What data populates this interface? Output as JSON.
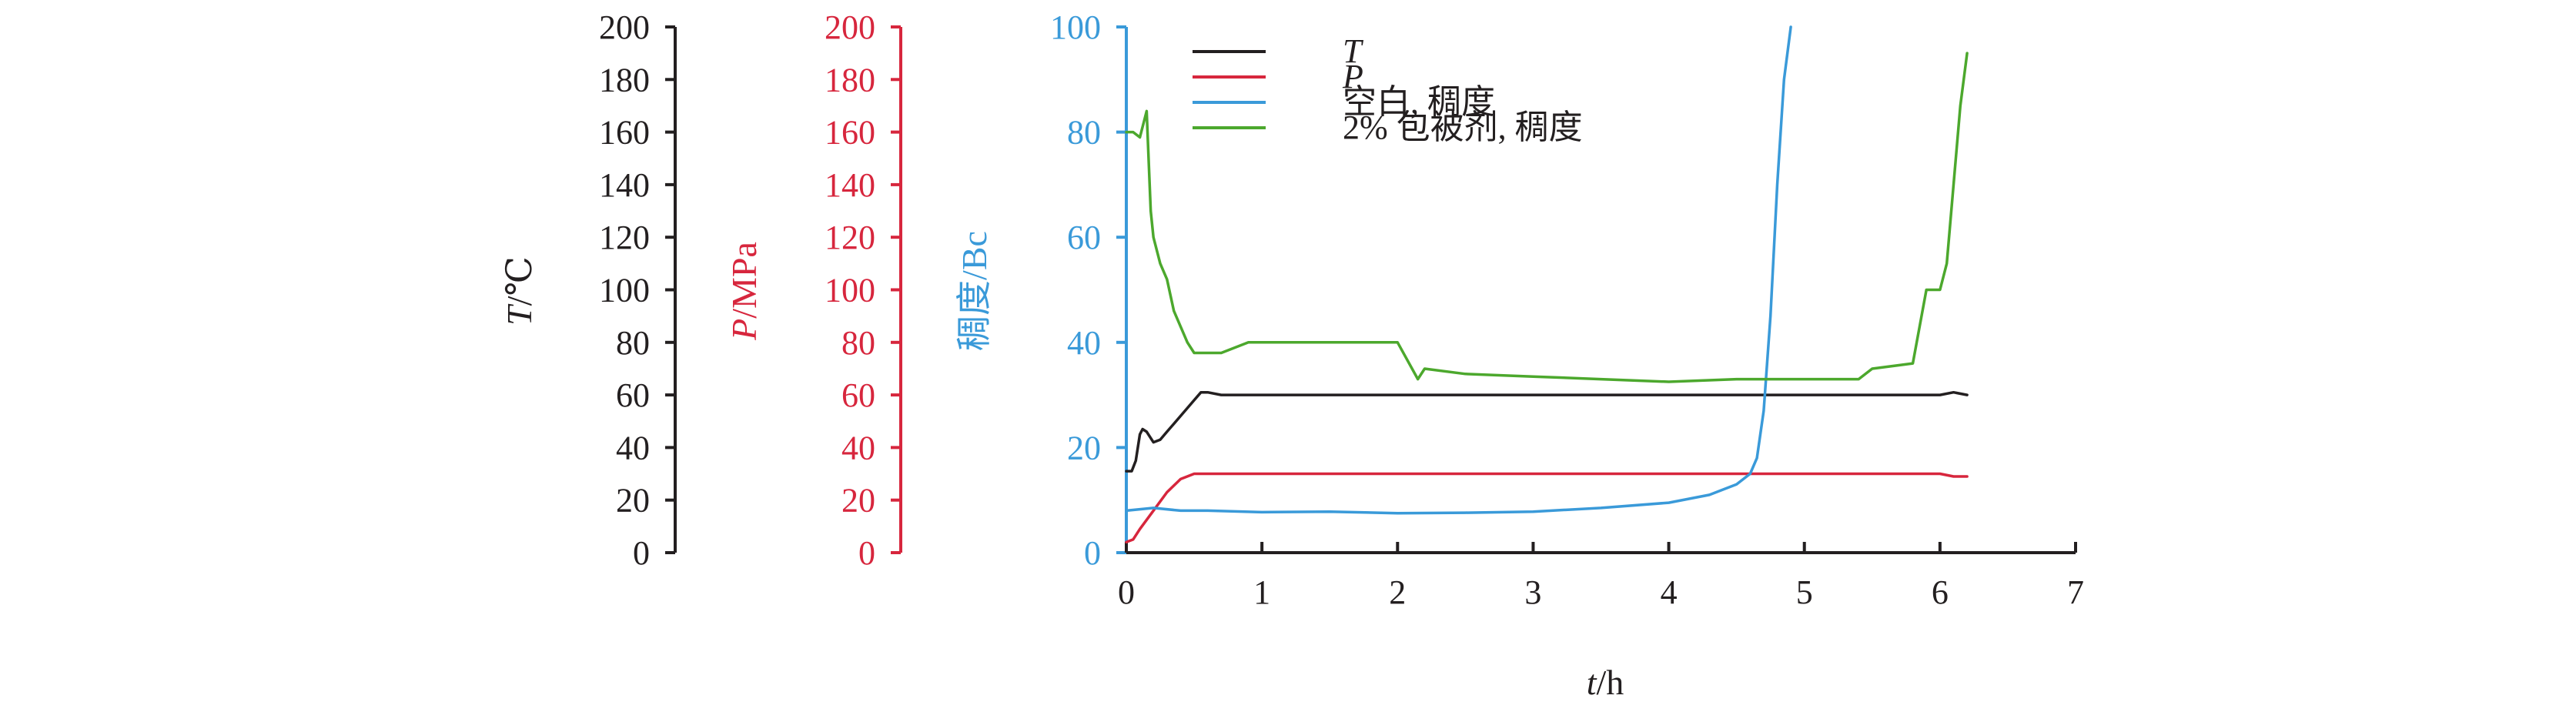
{
  "chart_data": {
    "type": "line",
    "xlabel": {
      "italic": "t",
      "rest": "/h"
    },
    "xlim": [
      0,
      7
    ],
    "x_ticks": [
      "0",
      "1",
      "2",
      "3",
      "4",
      "5",
      "6",
      "7"
    ],
    "axes": [
      {
        "id": "T",
        "label": {
          "italic": "T",
          "rest": "/℃"
        },
        "ylim": [
          0,
          200
        ],
        "ticks": [
          "0",
          "20",
          "40",
          "60",
          "80",
          "100",
          "120",
          "140",
          "160",
          "180",
          "200"
        ],
        "color": "#231f20"
      },
      {
        "id": "P",
        "label": {
          "italic": "P",
          "rest": "/MPa"
        },
        "ylim": [
          0,
          200
        ],
        "ticks": [
          "0",
          "20",
          "40",
          "60",
          "80",
          "100",
          "120",
          "140",
          "160",
          "180",
          "200"
        ],
        "color": "#d7263d"
      },
      {
        "id": "C",
        "label": {
          "italic": "",
          "rest": "稠度/Bc"
        },
        "ylim": [
          0,
          100
        ],
        "ticks": [
          "0",
          "20",
          "40",
          "60",
          "80",
          "100"
        ],
        "color": "#3a9ad9"
      }
    ],
    "series": [
      {
        "name": "T",
        "italic": true,
        "axis": "T",
        "color": "#231f20",
        "x": [
          0,
          0.04,
          0.07,
          0.1,
          0.12,
          0.15,
          0.2,
          0.25,
          0.3,
          0.4,
          0.5,
          0.55,
          0.6,
          0.7,
          1.0,
          2.0,
          3.0,
          4.0,
          5.0,
          5.8,
          6.0,
          6.1,
          6.2
        ],
        "y": [
          31,
          31,
          35,
          45,
          47,
          46,
          42,
          43,
          46,
          52,
          58,
          61,
          61,
          60,
          60,
          60,
          60,
          60,
          60,
          60,
          60,
          61,
          60
        ]
      },
      {
        "name": "P",
        "italic": true,
        "axis": "P",
        "color": "#d7263d",
        "x": [
          0,
          0.05,
          0.1,
          0.2,
          0.3,
          0.4,
          0.5,
          0.6,
          1.0,
          2.0,
          3.0,
          4.0,
          5.0,
          5.5,
          6.0,
          6.1,
          6.2
        ],
        "y": [
          4,
          5,
          9,
          16,
          23,
          28,
          30,
          30,
          30,
          30,
          30,
          30,
          30,
          30,
          30,
          29,
          29
        ]
      },
      {
        "name": "空白, 稠度",
        "italic": false,
        "axis": "C",
        "color": "#3a9ad9",
        "x": [
          0,
          0.2,
          0.4,
          0.6,
          1.0,
          1.5,
          2.0,
          2.5,
          3.0,
          3.5,
          4.0,
          4.3,
          4.5,
          4.6,
          4.65,
          4.7,
          4.75,
          4.8,
          4.85,
          4.9
        ],
        "y": [
          8,
          8.5,
          8,
          8,
          7.7,
          7.8,
          7.5,
          7.6,
          7.8,
          8.5,
          9.5,
          11,
          13,
          15,
          18,
          27,
          45,
          70,
          90,
          100
        ]
      },
      {
        "name": "2% 包被剂, 稠度",
        "italic": false,
        "axis": "C",
        "color": "#4ca82d",
        "x": [
          0,
          0.05,
          0.1,
          0.15,
          0.18,
          0.2,
          0.25,
          0.3,
          0.35,
          0.4,
          0.45,
          0.5,
          0.6,
          0.7,
          0.9,
          1.0,
          1.5,
          2.0,
          2.15,
          2.2,
          2.5,
          3.0,
          3.5,
          4.0,
          4.5,
          5.0,
          5.4,
          5.5,
          5.8,
          5.9,
          6.0,
          6.05,
          6.1,
          6.15,
          6.2
        ],
        "y": [
          80,
          80,
          79,
          84,
          65,
          60,
          55,
          52,
          46,
          43,
          40,
          38,
          38,
          38,
          40,
          40,
          40,
          40,
          33,
          35,
          34,
          33.5,
          33,
          32.5,
          33,
          33,
          33,
          35,
          36,
          50,
          50,
          55,
          70,
          85,
          95
        ]
      }
    ],
    "legend": {
      "placement": "top-left-of-plot",
      "entries": [
        {
          "text": "T",
          "italic": true,
          "color": "#231f20"
        },
        {
          "text": "P",
          "italic": true,
          "color": "#d7263d"
        },
        {
          "text": "空白, 稠度",
          "italic": false,
          "color": "#3a9ad9"
        },
        {
          "text": "2% 包被剂, 稠度",
          "italic": false,
          "color": "#4ca82d"
        }
      ]
    },
    "grid": false
  }
}
